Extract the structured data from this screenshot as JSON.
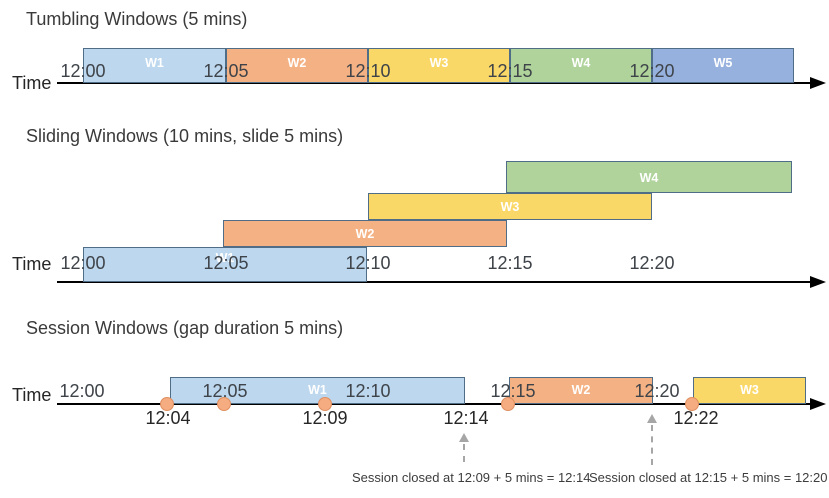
{
  "colors": {
    "blue": "#BDD7EE",
    "orange": "#F4B183",
    "yellow": "#FAD868",
    "green": "#AFD39A",
    "periwinkle": "#97B1DE",
    "box_border": "#4F6D87",
    "dot_fill": "#F5AC80",
    "dot_border": "#DE8F60",
    "arrow_gray": "#A6A6A6",
    "axis_black": "#000000"
  },
  "sections": {
    "tumbling": {
      "title": "Tumbling Windows (5 mins)",
      "time_label": "Time",
      "ticks": [
        "12:00",
        "12:05",
        "12:10",
        "12:15",
        "12:20"
      ],
      "windows": [
        {
          "label": "W1",
          "color": "blue"
        },
        {
          "label": "W2",
          "color": "orange"
        },
        {
          "label": "W3",
          "color": "yellow"
        },
        {
          "label": "W4",
          "color": "green"
        },
        {
          "label": "W5",
          "color": "periwinkle"
        }
      ]
    },
    "sliding": {
      "title": "Sliding Windows (10 mins, slide 5 mins)",
      "time_label": "Time",
      "ticks": [
        "12:00",
        "12:05",
        "12:10",
        "12:15",
        "12:20"
      ],
      "windows": [
        {
          "label": "W1",
          "color": "blue"
        },
        {
          "label": "W2",
          "color": "orange"
        },
        {
          "label": "W3",
          "color": "yellow"
        },
        {
          "label": "W4",
          "color": "green"
        }
      ]
    },
    "session": {
      "title": "Session Windows (gap duration 5 mins)",
      "time_label": "Time",
      "ticks": [
        "12:00",
        "12:05",
        "12:10",
        "12:15",
        "12:20"
      ],
      "windows": [
        {
          "label": "W1",
          "color": "blue"
        },
        {
          "label": "W2",
          "color": "orange"
        },
        {
          "label": "W3",
          "color": "yellow"
        }
      ],
      "event_labels": [
        "12:04",
        "12:09",
        "12:14",
        "12:22"
      ],
      "annotations": [
        "Session closed at 12:09 + 5 mins = 12:14",
        "Session closed at 12:15 + 5 mins = 12:20"
      ]
    }
  }
}
